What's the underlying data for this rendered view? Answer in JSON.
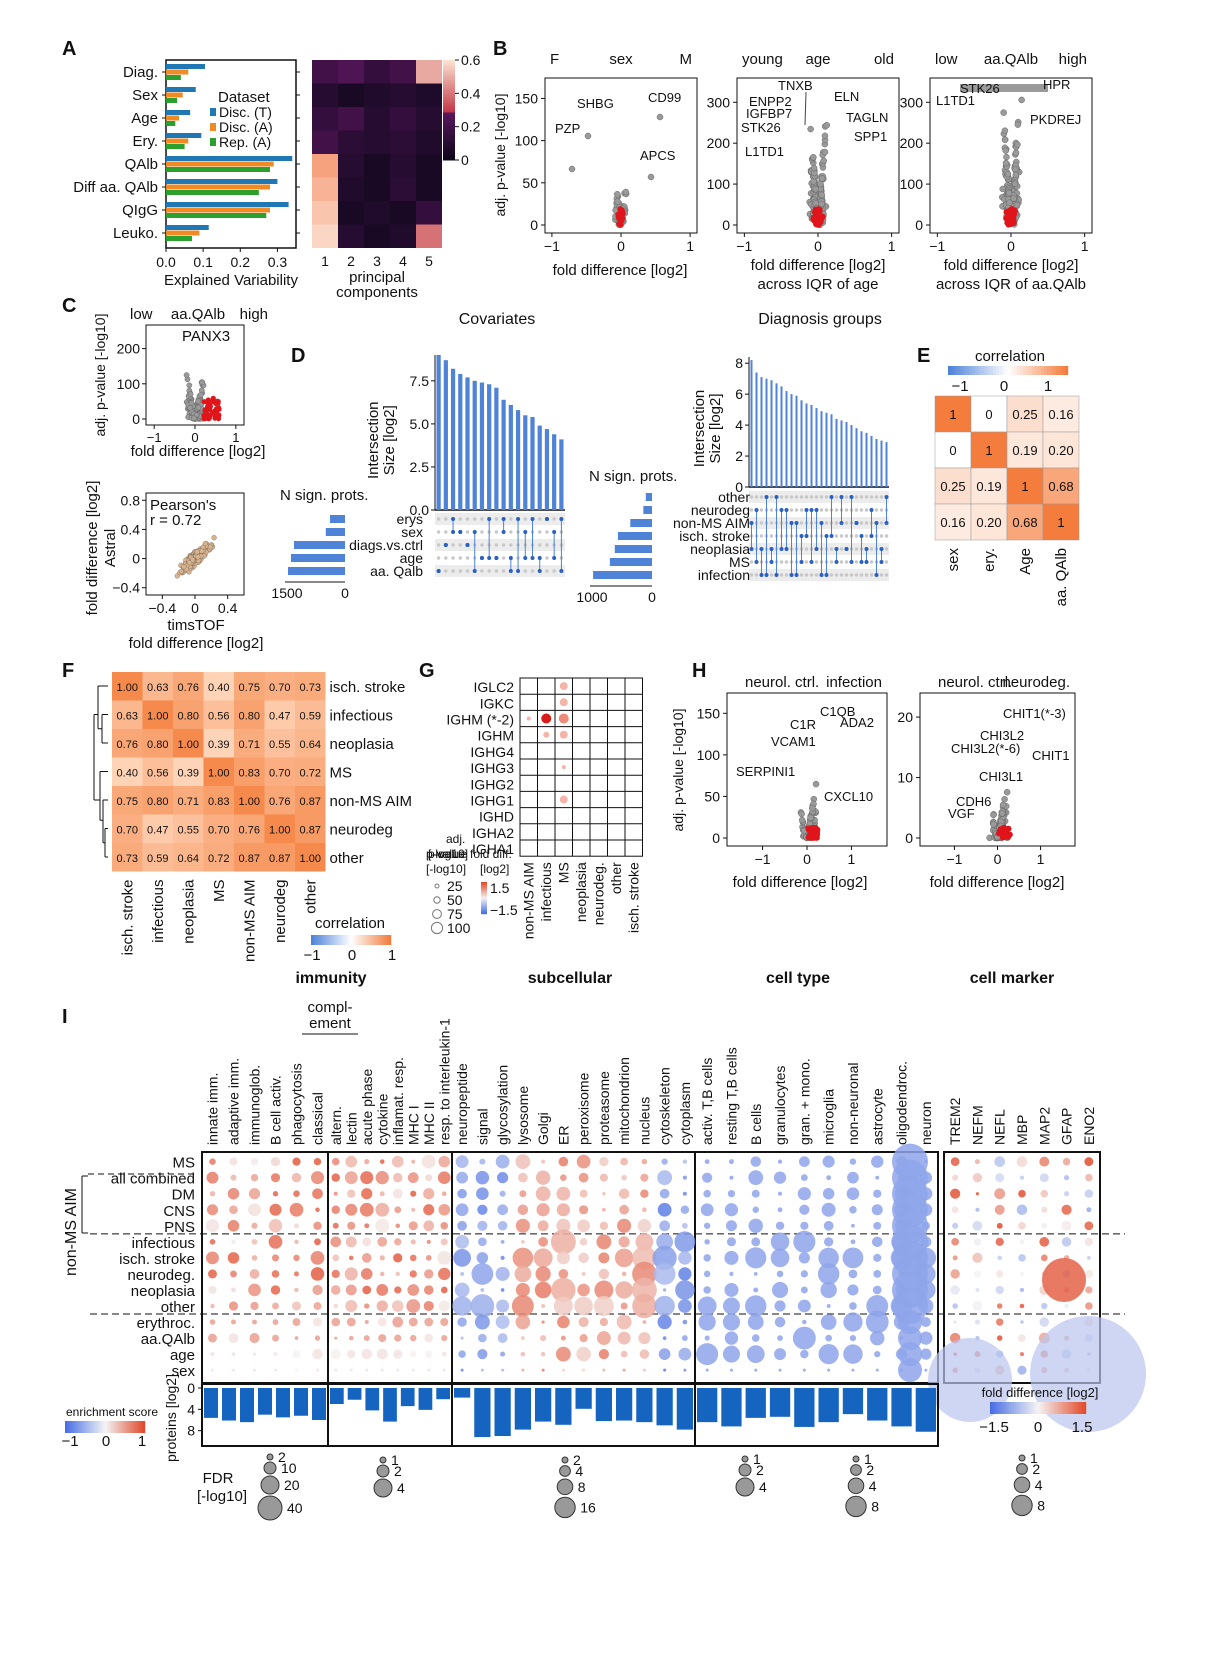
{
  "panels": {
    "A": {
      "letter": "A",
      "rows": [
        "Diag.",
        "Sex",
        "Age",
        "Ery.",
        "QAlb",
        "Diff aa. QAlb",
        "QIgG",
        "Leuko."
      ],
      "legend_title": "Dataset",
      "legend": [
        "Disc. (T)",
        "Disc. (A)",
        "Rep. (A)"
      ],
      "xlabel": "Explained Variability",
      "xticks": [
        "0.0",
        "0.1",
        "0.2",
        "0.3"
      ],
      "heat_xlabel": "principal components",
      "heat_cols": [
        "1",
        "2",
        "3",
        "4",
        "5"
      ],
      "cbar_ticks": [
        "0.6",
        "0.4",
        "0.2",
        "0"
      ]
    },
    "B": {
      "letter": "B",
      "plot1": {
        "left": "F",
        "mid": "sex",
        "right": "M",
        "ylabel": "adj. p-value [-log10]",
        "xlabel": "fold difference [log2]",
        "yticks": [
          "150",
          "100",
          "50",
          "0"
        ],
        "xticks": [
          "−1",
          "0",
          "1"
        ],
        "genes": [
          "SHBG",
          "CD99",
          "PZP",
          "APCS"
        ]
      },
      "plot2": {
        "left": "young",
        "mid": "age",
        "right": "old",
        "xlabel": "fold difference [log2]",
        "xlabel2": "across IQR of age",
        "yticks": [
          "300",
          "200",
          "100",
          "0"
        ],
        "xticks": [
          "−1",
          "0",
          "1"
        ],
        "genes": [
          "TNXB",
          "ENPP2",
          "ELN",
          "IGFBP7",
          "STK26",
          "TAGLN",
          "SPP1",
          "L1TD1"
        ]
      },
      "plot3": {
        "left": "low",
        "mid": "aa.QAlb",
        "right": "high",
        "xlabel": "fold difference [log2]",
        "xlabel2": "across IQR of aa.QAlb",
        "yticks": [
          "300",
          "200",
          "100",
          "0"
        ],
        "xticks": [
          "−1",
          "0",
          "1"
        ],
        "genes": [
          "STK26",
          "HPR",
          "L1TD1",
          "PKDREJ"
        ]
      }
    },
    "C": {
      "letter": "C",
      "top": {
        "left": "low",
        "mid": "aa.QAlb",
        "right": "high",
        "ylabel": "adj. p-value [-log10]",
        "xlabel": "fold difference [log2]",
        "gene": "PANX3",
        "yticks": [
          "200",
          "100",
          "0"
        ],
        "xticks": [
          "−1",
          "0",
          "1"
        ]
      },
      "bottom": {
        "ylabel": "fold difference [log2]",
        "ylabel2": "Astral",
        "xlabel": "timsTOF",
        "xlabel2": "fold difference [log2]",
        "note1": "Pearson's",
        "note2": "r = 0.72",
        "yticks": [
          "0.8",
          "0.4",
          "0",
          "−0.4"
        ],
        "xticks": [
          "−0.4",
          "0",
          "0.4"
        ]
      }
    },
    "D": {
      "letter": "D",
      "cov_title": "Covariates",
      "diag_title": "Diagnosis groups",
      "ylabel": "Intersection",
      "ylabel2": "Size [log2]",
      "nsign": "N sign. prots.",
      "cov_rows": [
        "erys",
        "sex",
        "diags.vs.ctrl",
        "age",
        "aa. Qalb"
      ],
      "cov_yticks": [
        "7.5",
        "5.0",
        "2.5",
        "0.0"
      ],
      "cov_xticks": [
        "1500",
        "0"
      ],
      "diag_rows": [
        "other",
        "neurodeg",
        "non-MS AIM",
        "isch. stroke",
        "neoplasia",
        "MS",
        "infection"
      ],
      "diag_yticks": [
        "8",
        "6",
        "4",
        "2",
        "0"
      ],
      "diag_xticks": [
        "1000",
        "0"
      ]
    },
    "E": {
      "letter": "E",
      "title": "correlation",
      "cbar_ticks": [
        "−1",
        "0",
        "1"
      ],
      "labels": [
        "sex",
        "ery.",
        "Age",
        "aa. QAlb"
      ],
      "matrix": [
        [
          "1",
          "0",
          "0.25",
          "0.16"
        ],
        [
          "0",
          "1",
          "0.19",
          "0.20"
        ],
        [
          "0.25",
          "0.19",
          "1",
          "0.68"
        ],
        [
          "0.16",
          "0.20",
          "0.68",
          "1"
        ]
      ]
    },
    "F": {
      "letter": "F",
      "labels": [
        "isch. stroke",
        "infectious",
        "neoplasia",
        "MS",
        "non-MS AIM",
        "neurodeg",
        "other"
      ],
      "matrix": [
        [
          "1.00",
          "0.63",
          "0.76",
          "0.40",
          "0.75",
          "0.70",
          "0.73"
        ],
        [
          "0.63",
          "1.00",
          "0.80",
          "0.56",
          "0.80",
          "0.47",
          "0.59"
        ],
        [
          "0.76",
          "0.80",
          "1.00",
          "0.39",
          "0.71",
          "0.55",
          "0.64"
        ],
        [
          "0.40",
          "0.56",
          "0.39",
          "1.00",
          "0.83",
          "0.70",
          "0.72"
        ],
        [
          "0.75",
          "0.80",
          "0.71",
          "0.83",
          "1.00",
          "0.76",
          "0.87"
        ],
        [
          "0.70",
          "0.47",
          "0.55",
          "0.70",
          "0.76",
          "1.00",
          "0.87"
        ],
        [
          "0.73",
          "0.59",
          "0.64",
          "0.72",
          "0.87",
          "0.87",
          "1.00"
        ]
      ],
      "cbar_title": "correlation",
      "cbar_ticks": [
        "−1",
        "0",
        "1"
      ]
    },
    "G": {
      "letter": "G",
      "rows": [
        "IGLC2",
        "IGKC",
        "IGHM (*-2)",
        "IGHM",
        "IGHG4",
        "IGHG3",
        "IGHG2",
        "IGHG1",
        "IGHD",
        "IGHA2",
        "IGHA1"
      ],
      "cols": [
        "non-MS AIM",
        "infectious",
        "MS",
        "neoplasia",
        "neurodeg.",
        "other",
        "isch. stroke"
      ],
      "size_title": [
        "adj.",
        "p-value",
        "[-log10]"
      ],
      "size_vals": [
        "25",
        "50",
        "75",
        "100"
      ],
      "color_title": [
        "fold diff.",
        "[log2]"
      ],
      "color_ticks": [
        "1.5",
        "−1.5"
      ]
    },
    "H": {
      "letter": "H",
      "plot1": {
        "left": "neurol. ctrl.",
        "right": "infection",
        "ylabel": "adj. p-value [-log10]",
        "xlabel": "fold difference [log2]",
        "yticks": [
          "150",
          "100",
          "50",
          "0"
        ],
        "xticks": [
          "−1",
          "0",
          "1"
        ],
        "genes": [
          "C1QB",
          "C1R",
          "ADA2",
          "VCAM1",
          "SERPINI1",
          "CXCL10"
        ]
      },
      "plot2": {
        "left": "neurol. ctrl.",
        "right": "neurodeg.",
        "xlabel": "fold difference [log2]",
        "yticks": [
          "20",
          "10",
          "0"
        ],
        "xticks": [
          "−1",
          "0",
          "1"
        ],
        "genes": [
          "CHIT1(*-3)",
          "CHI3L2",
          "CHI3L2(*-6)",
          "CHIT1",
          "CHI3L1",
          "CDH6",
          "VGF"
        ]
      }
    },
    "I": {
      "letter": "I",
      "sections": [
        "immunity",
        "subcellular",
        "cell type",
        "cell marker"
      ],
      "complement": [
        "compl-",
        "ement"
      ],
      "columns": [
        [
          "innate imm.",
          "adaptive imm.",
          "immunoglob.",
          "B cell activ.",
          "phagocytosis",
          "classical"
        ],
        [
          "altern.",
          "lectin",
          "acute phase",
          "cytokine",
          "inflamat. resp.",
          "MHC I",
          "MHC II",
          "resp. to interleukin-1"
        ],
        [
          "neuropeptide",
          "signal",
          "glycosylation",
          "lysosome",
          "Golgi",
          "ER",
          "peroxisome",
          "proteasome",
          "mitochondrion",
          "nucleus",
          "cytoskeleton",
          "cytoplasm"
        ],
        [
          "activ. T,B cells",
          "resting T,B cells",
          "B cells",
          "granulocytes",
          "gran. + mono.",
          "microglia",
          "non-neuronal",
          "astrocyte",
          "oligodendroc.",
          "neuron"
        ],
        [
          "TREM2",
          "NEFM",
          "NEFL",
          "MBP",
          "MAP2",
          "GFAP",
          "ENO2"
        ]
      ],
      "rows": [
        "MS",
        "all combined",
        "DM",
        "CNS",
        "PNS",
        "infectious",
        "isch. stroke",
        "neurodeg.",
        "neoplasia",
        "other",
        "erythroc.",
        "aa.QAlb",
        "age",
        "sex"
      ],
      "group_label": "non-MS AIM",
      "bar_ylabel": "proteins [log2]",
      "bar_yticks": [
        "0",
        "4",
        "8"
      ],
      "bar_values": [
        [
          5.6,
          6.1,
          6.4,
          5.0,
          5.5,
          5.2,
          6.0
        ],
        [
          3.0,
          2.2,
          4.2,
          6.3,
          3.4,
          4.1,
          2.1
        ],
        [
          1.8,
          9.2,
          9.0,
          7.8,
          6.3,
          6.9,
          3.9,
          6.2,
          6.1,
          6.4,
          7.0,
          7.8
        ],
        [
          6.4,
          7.2,
          5.6,
          5.4,
          7.3,
          6.4,
          4.9,
          6.1,
          7.2,
          8.2
        ]
      ],
      "ench_title": "enrichment score",
      "ench_ticks": [
        "−1",
        "0",
        "1"
      ],
      "fdr_title": [
        "FDR",
        "[-log10]"
      ],
      "fdr_sets": [
        [
          "2",
          "10",
          "20",
          "40"
        ],
        [
          "1",
          "2",
          "4"
        ],
        [
          "2",
          "4",
          "8",
          "16"
        ],
        [
          "1",
          "2",
          "4"
        ],
        [
          "1",
          "2",
          "4",
          "8"
        ],
        [
          "1",
          "2",
          "4",
          "8"
        ]
      ],
      "fold_title": "fold difference [log2]",
      "fold_ticks": [
        "−1.5",
        "0",
        "1.5"
      ]
    }
  }
}
